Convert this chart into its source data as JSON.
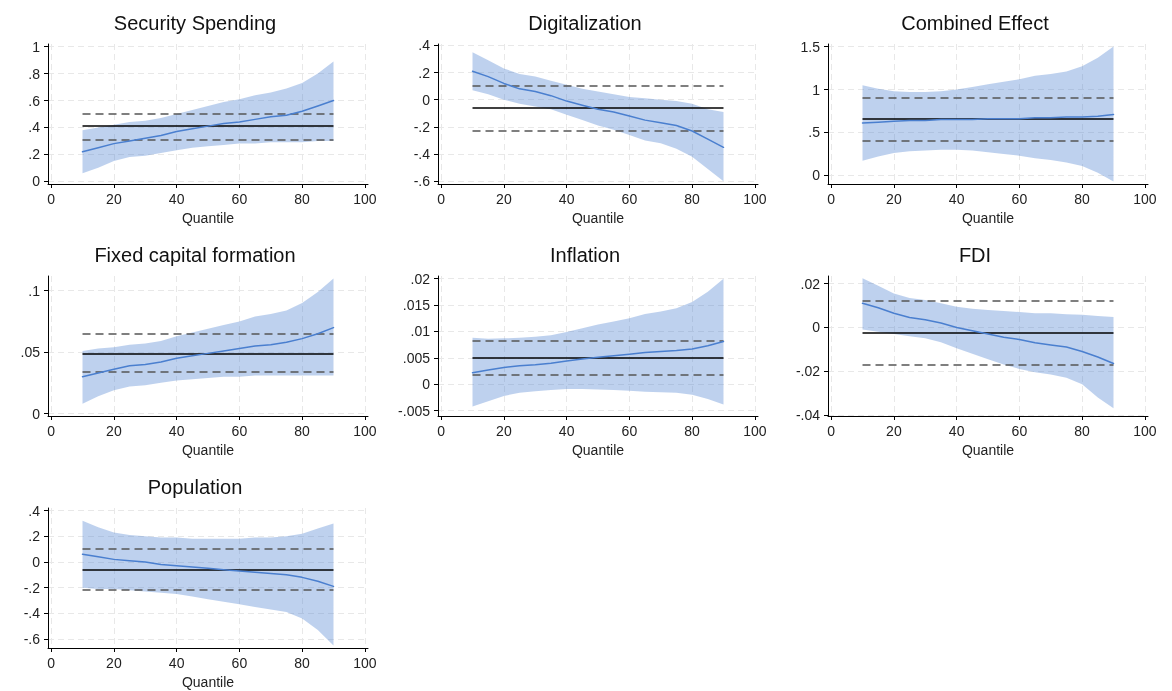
{
  "chart_data": [
    {
      "type": "line",
      "title": "Security Spending",
      "xlabel": "Quantile",
      "grid": true,
      "marker": "none",
      "line_style": "solid",
      "xlim": [
        -1,
        101
      ],
      "xticks": [
        0,
        20,
        40,
        60,
        80,
        100
      ],
      "ylim": [
        -0.02,
        1.02
      ],
      "yticks": [
        0,
        {
          "value": 0.2,
          "label": ".2"
        },
        {
          "value": 0.4,
          "label": ".4"
        },
        {
          "value": 0.6,
          "label": ".6"
        },
        {
          "value": 0.8,
          "label": ".8"
        },
        1
      ],
      "x": [
        10,
        15,
        20,
        25,
        30,
        35,
        40,
        45,
        50,
        55,
        60,
        65,
        70,
        75,
        80,
        85,
        90
      ],
      "series": [
        {
          "color": "#4a7fcf",
          "values": [
            0.22,
            0.25,
            0.28,
            0.3,
            0.32,
            0.34,
            0.37,
            0.39,
            0.41,
            0.43,
            0.44,
            0.46,
            0.48,
            0.49,
            0.52,
            0.56,
            0.6
          ],
          "lower": [
            0.06,
            0.1,
            0.15,
            0.18,
            0.19,
            0.21,
            0.23,
            0.25,
            0.26,
            0.27,
            0.28,
            0.28,
            0.29,
            0.29,
            0.29,
            0.3,
            0.3
          ],
          "upper": [
            0.38,
            0.4,
            0.42,
            0.44,
            0.45,
            0.47,
            0.5,
            0.53,
            0.56,
            0.59,
            0.61,
            0.64,
            0.66,
            0.69,
            0.73,
            0.8,
            0.89
          ]
        }
      ],
      "ref_lines": [
        {
          "axis": "y",
          "value": 0.41,
          "color": "#000000",
          "line_style": "solid"
        },
        {
          "axis": "y",
          "value": 0.5,
          "color": "#555555",
          "line_style": "dashed"
        },
        {
          "axis": "y",
          "value": 0.31,
          "color": "#555555",
          "line_style": "dashed"
        }
      ]
    },
    {
      "type": "line",
      "title": "Digitalization",
      "xlabel": "Quantile",
      "grid": true,
      "marker": "none",
      "line_style": "solid",
      "xlim": [
        -1,
        101
      ],
      "xticks": [
        0,
        20,
        40,
        60,
        80,
        100
      ],
      "ylim": [
        -0.62,
        0.41
      ],
      "yticks": [
        {
          "value": -0.6,
          "label": "-.6"
        },
        {
          "value": -0.4,
          "label": "-.4"
        },
        {
          "value": -0.2,
          "label": "-.2"
        },
        0,
        {
          "value": 0.2,
          "label": ".2"
        },
        {
          "value": 0.4,
          "label": ".4"
        }
      ],
      "x": [
        10,
        15,
        20,
        25,
        30,
        35,
        40,
        45,
        50,
        55,
        60,
        65,
        70,
        75,
        80,
        85,
        90
      ],
      "series": [
        {
          "color": "#4a7fcf",
          "values": [
            0.21,
            0.17,
            0.12,
            0.08,
            0.06,
            0.03,
            -0.01,
            -0.04,
            -0.07,
            -0.09,
            -0.12,
            -0.15,
            -0.17,
            -0.19,
            -0.23,
            -0.29,
            -0.35
          ],
          "lower": [
            0.07,
            0.04,
            0.0,
            -0.03,
            -0.05,
            -0.07,
            -0.11,
            -0.15,
            -0.19,
            -0.22,
            -0.26,
            -0.3,
            -0.32,
            -0.36,
            -0.42,
            -0.51,
            -0.6
          ],
          "upper": [
            0.35,
            0.29,
            0.23,
            0.19,
            0.17,
            0.14,
            0.11,
            0.08,
            0.06,
            0.04,
            0.02,
            0.01,
            0.0,
            -0.01,
            -0.03,
            -0.07,
            -0.09
          ]
        }
      ],
      "ref_lines": [
        {
          "axis": "y",
          "value": -0.06,
          "color": "#000000",
          "line_style": "solid"
        },
        {
          "axis": "y",
          "value": 0.1,
          "color": "#555555",
          "line_style": "dashed"
        },
        {
          "axis": "y",
          "value": -0.23,
          "color": "#555555",
          "line_style": "dashed"
        }
      ]
    },
    {
      "type": "line",
      "title": "Combined Effect",
      "xlabel": "Quantile",
      "grid": true,
      "marker": "none",
      "line_style": "solid",
      "xlim": [
        -1,
        101
      ],
      "xticks": [
        0,
        20,
        40,
        60,
        80,
        100
      ],
      "ylim": [
        -0.1,
        1.53
      ],
      "yticks": [
        0,
        {
          "value": 0.5,
          "label": ".5"
        },
        1,
        1.5
      ],
      "x": [
        10,
        15,
        20,
        25,
        30,
        35,
        40,
        45,
        50,
        55,
        60,
        65,
        70,
        75,
        80,
        85,
        90
      ],
      "series": [
        {
          "color": "#4a7fcf",
          "values": [
            0.61,
            0.62,
            0.63,
            0.64,
            0.64,
            0.65,
            0.65,
            0.65,
            0.66,
            0.66,
            0.66,
            0.67,
            0.67,
            0.68,
            0.68,
            0.69,
            0.71
          ],
          "lower": [
            0.17,
            0.22,
            0.26,
            0.28,
            0.29,
            0.3,
            0.3,
            0.29,
            0.27,
            0.25,
            0.23,
            0.2,
            0.18,
            0.15,
            0.11,
            0.03,
            -0.07
          ],
          "upper": [
            1.05,
            1.01,
            0.98,
            0.97,
            0.97,
            0.98,
            1.0,
            1.03,
            1.06,
            1.09,
            1.12,
            1.16,
            1.18,
            1.21,
            1.27,
            1.37,
            1.5
          ]
        }
      ],
      "ref_lines": [
        {
          "axis": "y",
          "value": 0.66,
          "color": "#000000",
          "line_style": "solid"
        },
        {
          "axis": "y",
          "value": 0.91,
          "color": "#555555",
          "line_style": "dashed"
        },
        {
          "axis": "y",
          "value": 0.4,
          "color": "#555555",
          "line_style": "dashed"
        }
      ]
    },
    {
      "type": "line",
      "title": "Fixed capital formation",
      "xlabel": "Quantile",
      "grid": true,
      "marker": "none",
      "line_style": "solid",
      "xlim": [
        -1,
        101
      ],
      "xticks": [
        0,
        20,
        40,
        60,
        80,
        100
      ],
      "ylim": [
        -0.002,
        0.112
      ],
      "yticks": [
        0,
        {
          "value": 0.05,
          "label": ".05"
        },
        {
          "value": 0.1,
          "label": ".1"
        }
      ],
      "x": [
        10,
        15,
        20,
        25,
        30,
        35,
        40,
        45,
        50,
        55,
        60,
        65,
        70,
        75,
        80,
        85,
        90
      ],
      "series": [
        {
          "color": "#4a7fcf",
          "values": [
            0.03,
            0.033,
            0.036,
            0.039,
            0.04,
            0.042,
            0.045,
            0.047,
            0.049,
            0.051,
            0.053,
            0.055,
            0.056,
            0.058,
            0.061,
            0.065,
            0.07
          ],
          "lower": [
            0.008,
            0.014,
            0.019,
            0.022,
            0.023,
            0.025,
            0.027,
            0.028,
            0.029,
            0.03,
            0.03,
            0.031,
            0.031,
            0.031,
            0.031,
            0.031,
            0.031
          ],
          "upper": [
            0.051,
            0.053,
            0.054,
            0.056,
            0.057,
            0.059,
            0.063,
            0.066,
            0.069,
            0.072,
            0.075,
            0.079,
            0.081,
            0.084,
            0.09,
            0.099,
            0.11
          ]
        }
      ],
      "ref_lines": [
        {
          "axis": "y",
          "value": 0.049,
          "color": "#000000",
          "line_style": "solid"
        },
        {
          "axis": "y",
          "value": 0.065,
          "color": "#555555",
          "line_style": "dashed"
        },
        {
          "axis": "y",
          "value": 0.034,
          "color": "#555555",
          "line_style": "dashed"
        }
      ]
    },
    {
      "type": "line",
      "title": "Inflation",
      "xlabel": "Quantile",
      "grid": true,
      "marker": "none",
      "line_style": "solid",
      "xlim": [
        -1,
        101
      ],
      "xticks": [
        0,
        20,
        40,
        60,
        80,
        100
      ],
      "ylim": [
        -0.006,
        0.0205
      ],
      "yticks": [
        {
          "value": -0.005,
          "label": "-.005"
        },
        0,
        {
          "value": 0.005,
          "label": ".005"
        },
        {
          "value": 0.01,
          "label": ".01"
        },
        {
          "value": 0.015,
          "label": ".015"
        },
        {
          "value": 0.02,
          "label": ".02"
        }
      ],
      "x": [
        10,
        15,
        20,
        25,
        30,
        35,
        40,
        45,
        50,
        55,
        60,
        65,
        70,
        75,
        80,
        85,
        90
      ],
      "series": [
        {
          "color": "#4a7fcf",
          "values": [
            0.0022,
            0.0027,
            0.0032,
            0.0035,
            0.0037,
            0.004,
            0.0044,
            0.0048,
            0.0051,
            0.0054,
            0.0057,
            0.006,
            0.0062,
            0.0064,
            0.0067,
            0.0073,
            0.0081
          ],
          "lower": [
            -0.0042,
            -0.0032,
            -0.0022,
            -0.0016,
            -0.0013,
            -0.0011,
            -0.0009,
            -0.0009,
            -0.001,
            -0.0011,
            -0.0012,
            -0.0014,
            -0.0015,
            -0.0016,
            -0.002,
            -0.0028,
            -0.0038
          ],
          "upper": [
            0.0088,
            0.0086,
            0.0087,
            0.0088,
            0.009,
            0.0093,
            0.0099,
            0.0106,
            0.0113,
            0.0119,
            0.0125,
            0.0133,
            0.0138,
            0.0144,
            0.0156,
            0.0175,
            0.02
          ]
        }
      ],
      "ref_lines": [
        {
          "axis": "y",
          "value": 0.0051,
          "color": "#000000",
          "line_style": "solid"
        },
        {
          "axis": "y",
          "value": 0.0083,
          "color": "#555555",
          "line_style": "dashed"
        },
        {
          "axis": "y",
          "value": 0.0019,
          "color": "#555555",
          "line_style": "dashed"
        }
      ]
    },
    {
      "type": "line",
      "title": "FDI",
      "xlabel": "Quantile",
      "grid": true,
      "marker": "none",
      "line_style": "solid",
      "xlim": [
        -1,
        101
      ],
      "xticks": [
        0,
        20,
        40,
        60,
        80,
        100
      ],
      "ylim": [
        -0.0405,
        0.0235
      ],
      "yticks": [
        {
          "value": -0.04,
          "label": "-.04"
        },
        {
          "value": -0.02,
          "label": "-.02"
        },
        0,
        {
          "value": 0.02,
          "label": ".02"
        }
      ],
      "x": [
        10,
        15,
        20,
        25,
        30,
        35,
        40,
        45,
        50,
        55,
        60,
        65,
        70,
        75,
        80,
        85,
        90
      ],
      "series": [
        {
          "color": "#4a7fcf",
          "values": [
            0.011,
            0.009,
            0.0065,
            0.0045,
            0.0035,
            0.002,
            0.0,
            -0.0015,
            -0.003,
            -0.0045,
            -0.0055,
            -0.007,
            -0.008,
            -0.009,
            -0.011,
            -0.0135,
            -0.0165
          ],
          "lower": [
            -0.001,
            -0.002,
            -0.003,
            -0.004,
            -0.005,
            -0.0068,
            -0.0095,
            -0.012,
            -0.0145,
            -0.017,
            -0.019,
            -0.0205,
            -0.0215,
            -0.023,
            -0.026,
            -0.032,
            -0.037
          ],
          "upper": [
            0.0225,
            0.019,
            0.0155,
            0.0135,
            0.0125,
            0.011,
            0.0095,
            0.0085,
            0.008,
            0.0075,
            0.007,
            0.0065,
            0.0065,
            0.006,
            0.0058,
            0.0052,
            0.0048
          ]
        }
      ],
      "ref_lines": [
        {
          "axis": "y",
          "value": -0.0025,
          "color": "#000000",
          "line_style": "solid"
        },
        {
          "axis": "y",
          "value": 0.012,
          "color": "#555555",
          "line_style": "dashed"
        },
        {
          "axis": "y",
          "value": -0.017,
          "color": "#555555",
          "line_style": "dashed"
        }
      ]
    },
    {
      "type": "line",
      "title": "Population",
      "xlabel": "Quantile",
      "grid": true,
      "marker": "none",
      "line_style": "solid",
      "xlim": [
        -1,
        101
      ],
      "xticks": [
        0,
        20,
        40,
        60,
        80,
        100
      ],
      "ylim": [
        -0.67,
        0.42
      ],
      "yticks": [
        {
          "value": -0.6,
          "label": "-.6"
        },
        {
          "value": -0.4,
          "label": "-.4"
        },
        {
          "value": -0.2,
          "label": "-.2"
        },
        0,
        {
          "value": 0.2,
          "label": ".2"
        },
        {
          "value": 0.4,
          "label": ".4"
        }
      ],
      "x": [
        10,
        15,
        20,
        25,
        30,
        35,
        40,
        45,
        50,
        55,
        60,
        65,
        70,
        75,
        80,
        85,
        90
      ],
      "series": [
        {
          "color": "#4a7fcf",
          "values": [
            0.06,
            0.04,
            0.02,
            0.01,
            0.0,
            -0.02,
            -0.03,
            -0.04,
            -0.05,
            -0.06,
            -0.07,
            -0.08,
            -0.09,
            -0.1,
            -0.12,
            -0.15,
            -0.19
          ],
          "lower": [
            -0.2,
            -0.21,
            -0.21,
            -0.22,
            -0.23,
            -0.24,
            -0.25,
            -0.27,
            -0.29,
            -0.31,
            -0.33,
            -0.35,
            -0.37,
            -0.39,
            -0.44,
            -0.53,
            -0.65
          ],
          "upper": [
            0.32,
            0.27,
            0.23,
            0.21,
            0.2,
            0.19,
            0.19,
            0.18,
            0.18,
            0.18,
            0.18,
            0.19,
            0.19,
            0.2,
            0.22,
            0.26,
            0.3
          ]
        }
      ],
      "ref_lines": [
        {
          "axis": "y",
          "value": -0.06,
          "color": "#000000",
          "line_style": "solid"
        },
        {
          "axis": "y",
          "value": 0.1,
          "color": "#555555",
          "line_style": "dashed"
        },
        {
          "axis": "y",
          "value": -0.22,
          "color": "#555555",
          "line_style": "dashed"
        }
      ]
    }
  ]
}
